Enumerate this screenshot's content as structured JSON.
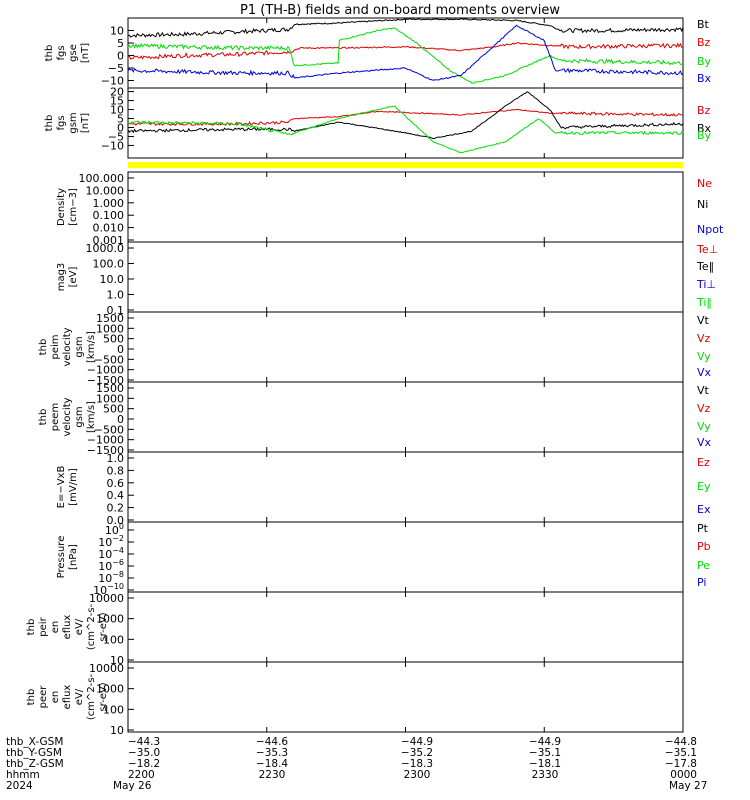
{
  "title": "P1  (TH-B) fields and on-board moments overview",
  "colors": {
    "black": "#000000",
    "red": "#dd0000",
    "green": "#00dd00",
    "blue": "#0000dd",
    "yellow": "#ffff00"
  },
  "chart_data": [
    {
      "type": "line",
      "id": "fgs-gse",
      "ylabel": [
        "thb",
        "fgs",
        "gse",
        "[nT]"
      ],
      "ylim": [
        -13,
        15
      ],
      "yticks": [
        10,
        5,
        0,
        -5,
        -10
      ],
      "tick_labels": [
        "10",
        "5",
        "0",
        "−5",
        "−10"
      ],
      "series": [
        {
          "name": "Bt",
          "color": "#000000",
          "points": [
            [
              0,
              8
            ],
            [
              0.1,
              8.5
            ],
            [
              0.2,
              9.5
            ],
            [
              0.29,
              10.5
            ],
            [
              0.3,
              12.5
            ],
            [
              0.38,
              13
            ],
            [
              0.5,
              14.5
            ],
            [
              0.6,
              14.5
            ],
            [
              0.7,
              14
            ],
            [
              0.76,
              12
            ],
            [
              0.78,
              10
            ],
            [
              0.85,
              10
            ],
            [
              1,
              10.5
            ]
          ]
        },
        {
          "name": "Bz",
          "color": "#dd0000",
          "points": [
            [
              0,
              -1
            ],
            [
              0.1,
              0
            ],
            [
              0.2,
              0.5
            ],
            [
              0.29,
              1.5
            ],
            [
              0.31,
              3
            ],
            [
              0.38,
              3
            ],
            [
              0.5,
              3.5
            ],
            [
              0.6,
              2
            ],
            [
              0.66,
              3.5
            ],
            [
              0.7,
              5
            ],
            [
              0.76,
              4
            ],
            [
              0.8,
              3.5
            ],
            [
              1,
              4
            ]
          ]
        },
        {
          "name": "By",
          "color": "#00dd00",
          "points": [
            [
              0,
              4
            ],
            [
              0.1,
              3.5
            ],
            [
              0.2,
              3
            ],
            [
              0.29,
              3
            ],
            [
              0.3,
              -4
            ],
            [
              0.38,
              -3
            ],
            [
              0.38,
              6
            ],
            [
              0.45,
              10
            ],
            [
              0.48,
              11
            ],
            [
              0.52,
              5
            ],
            [
              0.58,
              -6
            ],
            [
              0.62,
              -11
            ],
            [
              0.68,
              -8
            ],
            [
              0.76,
              0
            ],
            [
              0.78,
              -2
            ],
            [
              1,
              -3
            ]
          ]
        },
        {
          "name": "Bx",
          "color": "#0000dd",
          "points": [
            [
              0,
              -6
            ],
            [
              0.1,
              -6.5
            ],
            [
              0.2,
              -7
            ],
            [
              0.29,
              -7
            ],
            [
              0.3,
              -9
            ],
            [
              0.38,
              -7
            ],
            [
              0.5,
              -5
            ],
            [
              0.55,
              -10
            ],
            [
              0.6,
              -8
            ],
            [
              0.65,
              2
            ],
            [
              0.7,
              12
            ],
            [
              0.75,
              6
            ],
            [
              0.77,
              -6
            ],
            [
              0.8,
              -6
            ],
            [
              1,
              -7
            ]
          ]
        }
      ]
    },
    {
      "type": "line",
      "id": "fgs-gsm",
      "ylabel": [
        "thb",
        "fgs",
        "gsm",
        "[nT]"
      ],
      "ylim": [
        -17,
        22
      ],
      "yticks": [
        20,
        15,
        10,
        5,
        0,
        -5,
        -10
      ],
      "tick_labels": [
        "20",
        "15",
        "10",
        "5",
        "0",
        "−5",
        "−10"
      ],
      "series": [
        {
          "name": "Bz",
          "color": "#dd0000",
          "points": [
            [
              0,
              2
            ],
            [
              0.2,
              2
            ],
            [
              0.29,
              3
            ],
            [
              0.3,
              5
            ],
            [
              0.38,
              6
            ],
            [
              0.45,
              9
            ],
            [
              0.6,
              7
            ],
            [
              0.7,
              10
            ],
            [
              0.76,
              8
            ],
            [
              1,
              7
            ]
          ]
        },
        {
          "name": "Bx",
          "color": "#000000",
          "points": [
            [
              0,
              -2
            ],
            [
              0.2,
              -1
            ],
            [
              0.29,
              -1
            ],
            [
              0.3,
              -2
            ],
            [
              0.38,
              3
            ],
            [
              0.5,
              -3
            ],
            [
              0.55,
              -6
            ],
            [
              0.62,
              -2
            ],
            [
              0.68,
              12
            ],
            [
              0.72,
              20
            ],
            [
              0.76,
              10
            ],
            [
              0.78,
              0
            ],
            [
              1,
              2
            ]
          ]
        },
        {
          "name": "By",
          "color": "#00dd00",
          "points": [
            [
              0,
              3
            ],
            [
              0.2,
              2
            ],
            [
              0.29,
              -4
            ],
            [
              0.31,
              -2
            ],
            [
              0.38,
              5
            ],
            [
              0.45,
              10
            ],
            [
              0.48,
              12
            ],
            [
              0.55,
              -8
            ],
            [
              0.6,
              -14
            ],
            [
              0.68,
              -8
            ],
            [
              0.74,
              5
            ],
            [
              0.77,
              -3
            ],
            [
              1,
              -3
            ]
          ]
        }
      ]
    },
    {
      "type": "line",
      "id": "density",
      "ylabel": [
        "Density",
        "[cm−3]"
      ],
      "tick_labels": [
        "100.000",
        "10.000",
        "1.000",
        "0.100",
        "0.010",
        "0.001"
      ],
      "series": [
        {
          "name": "Ne",
          "color": "#dd0000"
        },
        {
          "name": "Ni",
          "color": "#000000"
        },
        {
          "name": "Npot",
          "color": "#0000dd"
        }
      ]
    },
    {
      "type": "line",
      "id": "temperature",
      "ylabel": [
        "mag3",
        "[eV]"
      ],
      "tick_labels": [
        "1000.0",
        "100.0",
        "10.0",
        "1.0",
        "0.1"
      ],
      "series": [
        {
          "name": "Te⊥",
          "color": "#dd0000"
        },
        {
          "name": "Te‖",
          "color": "#000000"
        },
        {
          "name": "Ti⊥",
          "color": "#0000dd"
        },
        {
          "name": "Ti‖",
          "color": "#00dd00"
        }
      ]
    },
    {
      "type": "line",
      "id": "peim-velocity",
      "ylabel": [
        "thb",
        "peim",
        "velocity",
        "gsm",
        "[km/s]"
      ],
      "tick_labels": [
        "1500",
        "1000",
        "500",
        "0",
        "−500",
        "−1000",
        "−1500"
      ],
      "series": [
        {
          "name": "Vt",
          "color": "#000000"
        },
        {
          "name": "Vz",
          "color": "#dd0000"
        },
        {
          "name": "Vy",
          "color": "#00dd00"
        },
        {
          "name": "Vx",
          "color": "#0000dd"
        }
      ]
    },
    {
      "type": "line",
      "id": "peem-velocity",
      "ylabel": [
        "thb",
        "peem",
        "velocity",
        "gsm",
        "[km/s]"
      ],
      "tick_labels": [
        "1500",
        "1000",
        "500",
        "0",
        "−500",
        "−1000",
        "−1500"
      ],
      "series": [
        {
          "name": "Vt",
          "color": "#000000"
        },
        {
          "name": "Vz",
          "color": "#dd0000"
        },
        {
          "name": "Vy",
          "color": "#00dd00"
        },
        {
          "name": "Vx",
          "color": "#0000dd"
        }
      ]
    },
    {
      "type": "line",
      "id": "efield",
      "ylabel": [
        "E=−VxB",
        "[mV/m]"
      ],
      "tick_labels": [
        "1.0",
        "0.8",
        "0.6",
        "0.4",
        "0.2",
        "0.0"
      ],
      "series": [
        {
          "name": "Ez",
          "color": "#dd0000"
        },
        {
          "name": "Ey",
          "color": "#00dd00"
        },
        {
          "name": "Ex",
          "color": "#0000dd"
        }
      ]
    },
    {
      "type": "line",
      "id": "pressure",
      "ylabel": [
        "Pressure",
        "[nPa]"
      ],
      "tick_base": "10",
      "tick_exponents": [
        "0",
        "−2",
        "−4",
        "−6",
        "−8",
        "−10"
      ],
      "series": [
        {
          "name": "Pt",
          "color": "#000000"
        },
        {
          "name": "Pb",
          "color": "#dd0000"
        },
        {
          "name": "Pe",
          "color": "#00dd00"
        },
        {
          "name": "Pi",
          "color": "#0000dd"
        }
      ]
    },
    {
      "type": "line",
      "id": "peir-flux",
      "ylabel": [
        "thb",
        "peir",
        "en",
        "eflux",
        "eV/",
        "(cm^2-s-",
        "sr-eV)"
      ],
      "tick_labels": [
        "10000",
        "1000",
        "100",
        "10"
      ],
      "series": []
    },
    {
      "type": "line",
      "id": "peer-flux",
      "ylabel": [
        "thb",
        "peer",
        "en",
        "eflux",
        "eV/",
        "(cm^2-s-",
        "sr-eV)"
      ],
      "tick_labels": [
        "10000",
        "1000",
        "100",
        "10"
      ],
      "series": []
    }
  ],
  "axis_rows": [
    {
      "label": "thb_X-GSM",
      "values": [
        "−44.3",
        "−44.6",
        "−44.9",
        "−44.9",
        "−44.8"
      ]
    },
    {
      "label": "thb_Y-GSM",
      "values": [
        "−35.0",
        "−35.3",
        "−35.2",
        "−35.1",
        "−35.1"
      ]
    },
    {
      "label": "thb_Z-GSM",
      "values": [
        "−18.2",
        "−18.4",
        "−18.3",
        "−18.1",
        "−17.8"
      ]
    },
    {
      "label": "hhmm",
      "values": [
        "2200",
        "2230",
        "2300",
        "2330",
        "0000"
      ]
    }
  ],
  "year_label": "2024",
  "date_start": "May 26",
  "date_end": "May 27"
}
